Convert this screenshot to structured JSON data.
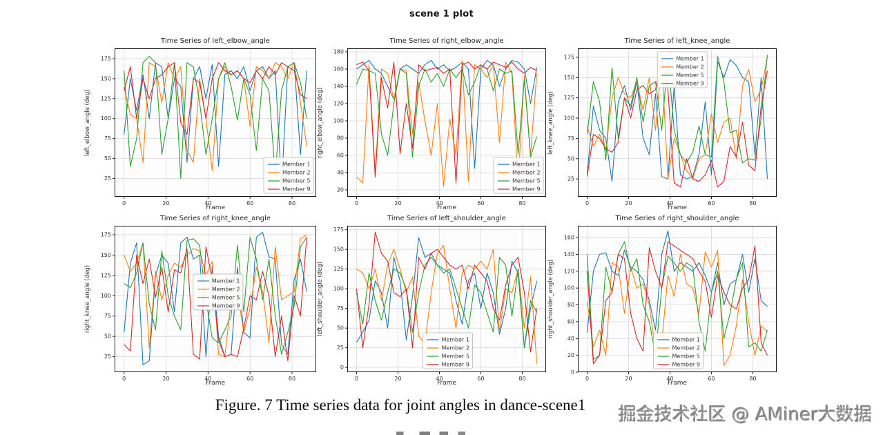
{
  "page": {
    "caption": "Figure. 7 Time series data for joint angles in dance-scene1",
    "watermark": "掘金技术社区 @ AMiner大数据"
  },
  "chart_data": {
    "type": "line",
    "title": "scene 1 plot",
    "shared": {
      "xlabel": "Frame",
      "xticks": [
        0,
        20,
        40,
        60,
        80
      ],
      "xlim": [
        -4.5,
        91.5
      ],
      "frames": [
        0,
        3,
        6,
        9,
        12,
        15,
        18,
        21,
        24,
        27,
        30,
        33,
        36,
        39,
        42,
        45,
        48,
        51,
        54,
        57,
        60,
        63,
        66,
        69,
        72,
        75,
        78,
        81,
        84,
        87
      ],
      "members": [
        "Member 1",
        "Member 2",
        "Member 5",
        "Member 9"
      ],
      "colors": [
        "#1f77b4",
        "#ff7f0e",
        "#2ca02c",
        "#d62728"
      ],
      "grid": true,
      "legend_border_color": "#b5b5b5"
    },
    "subplots": [
      {
        "title": "Time Series of left_elbow_angle",
        "ylabel": "left_elbow_angle (deg)",
        "yticks": [
          25,
          50,
          75,
          100,
          125,
          150,
          175
        ],
        "ylim": [
          2,
          188
        ],
        "legend_pos": "lower right",
        "series": [
          [
            80,
            150,
            110,
            155,
            100,
            170,
            165,
            100,
            150,
            140,
            45,
            150,
            165,
            125,
            168,
            40,
            155,
            160,
            150,
            165,
            135,
            160,
            165,
            150,
            160,
            15,
            165,
            170,
            55,
            160
          ],
          [
            140,
            105,
            100,
            45,
            170,
            165,
            120,
            170,
            150,
            165,
            60,
            45,
            150,
            100,
            35,
            150,
            165,
            155,
            160,
            150,
            90,
            165,
            160,
            150,
            170,
            165,
            150,
            170,
            120,
            65
          ],
          [
            160,
            40,
            75,
            170,
            178,
            170,
            55,
            100,
            170,
            25,
            170,
            165,
            120,
            55,
            100,
            150,
            170,
            140,
            98,
            150,
            130,
            60,
            150,
            135,
            28,
            135,
            165,
            170,
            145,
            100
          ],
          [
            135,
            165,
            100,
            150,
            125,
            150,
            155,
            165,
            170,
            95,
            80,
            150,
            145,
            100,
            150,
            170,
            160,
            155,
            160,
            150,
            145,
            160,
            150,
            165,
            155,
            170,
            165,
            160,
            130,
            125
          ]
        ]
      },
      {
        "title": "Time Series of right_elbow_angle",
        "ylabel": "right_elbow_angle (deg)",
        "yticks": [
          20,
          40,
          60,
          80,
          100,
          120,
          140,
          160,
          180
        ],
        "ylim": [
          12,
          184
        ],
        "legend_pos": "lower right",
        "series": [
          [
            160,
            165,
            170,
            160,
            155,
            140,
            125,
            160,
            165,
            160,
            155,
            165,
            170,
            160,
            165,
            158,
            162,
            168,
            160,
            45,
            160,
            170,
            165,
            140,
            160,
            170,
            168,
            160,
            120,
            162
          ],
          [
            35,
            28,
            165,
            40,
            160,
            155,
            125,
            160,
            158,
            85,
            145,
            100,
            60,
            120,
            24,
            102,
            60,
            170,
            30,
            165,
            160,
            150,
            165,
            75,
            168,
            155,
            30,
            152,
            60,
            155
          ],
          [
            142,
            160,
            158,
            155,
            85,
            60,
            120,
            160,
            155,
            58,
            140,
            160,
            145,
            155,
            140,
            160,
            150,
            160,
            130,
            145,
            165,
            160,
            135,
            160,
            155,
            158,
            62,
            148,
            58,
            82
          ],
          [
            165,
            168,
            158,
            35,
            150,
            115,
            168,
            62,
            120,
            68,
            165,
            158,
            160,
            162,
            155,
            160,
            28,
            165,
            168,
            160,
            165,
            160,
            168,
            165,
            162,
            168,
            160,
            155,
            162,
            158
          ]
        ]
      },
      {
        "title": "Time Series of left_knee_angle",
        "ylabel": "left_knee_angle (deg)",
        "yticks": [
          25,
          50,
          75,
          100,
          125,
          150,
          175
        ],
        "ylim": [
          3,
          186
        ],
        "legend_pos": "upper center",
        "series": [
          [
            30,
            115,
            85,
            75,
            22,
            120,
            140,
            110,
            145,
            75,
            55,
            130,
            28,
            25,
            140,
            30,
            25,
            28,
            55,
            120,
            30,
            170,
            150,
            172,
            165,
            150,
            145,
            55,
            150,
            25
          ],
          [
            90,
            65,
            80,
            60,
            125,
            150,
            130,
            125,
            145,
            110,
            150,
            85,
            170,
            25,
            75,
            55,
            35,
            25,
            50,
            55,
            105,
            70,
            95,
            100,
            50,
            140,
            160,
            120,
            135,
            175
          ],
          [
            80,
            145,
            120,
            48,
            162,
            75,
            125,
            115,
            150,
            95,
            140,
            145,
            85,
            175,
            85,
            55,
            45,
            58,
            90,
            55,
            52,
            176,
            145,
            82,
            85,
            45,
            50,
            48,
            100,
            178
          ],
          [
            28,
            80,
            75,
            62,
            58,
            70,
            125,
            100,
            135,
            140,
            130,
            135,
            173,
            135,
            20,
            15,
            50,
            25,
            22,
            30,
            48,
            15,
            22,
            65,
            52,
            95,
            42,
            35,
            115,
            158
          ]
        ]
      },
      {
        "title": "Time Series of right_knee_angle",
        "ylabel": "right_knee_angle (deg)",
        "yticks": [
          25,
          50,
          75,
          100,
          125,
          150,
          175
        ],
        "ylim": [
          6,
          186
        ],
        "legend_pos": "center",
        "series": [
          [
            55,
            140,
            165,
            15,
            20,
            125,
            150,
            140,
            80,
            165,
            172,
            145,
            150,
            25,
            135,
            50,
            25,
            28,
            135,
            55,
            48,
            172,
            178,
            148,
            145,
            40,
            28,
            120,
            145,
            105
          ],
          [
            150,
            130,
            140,
            165,
            35,
            130,
            95,
            125,
            140,
            135,
            150,
            158,
            155,
            125,
            142,
            28,
            25,
            95,
            105,
            55,
            85,
            135,
            105,
            42,
            160,
            95,
            100,
            105,
            170,
            175
          ],
          [
            115,
            110,
            128,
            165,
            90,
            58,
            155,
            100,
            75,
            58,
            168,
            170,
            162,
            95,
            48,
            42,
            58,
            75,
            162,
            80,
            172,
            145,
            95,
            145,
            75,
            28,
            55,
            88,
            160,
            172
          ],
          [
            40,
            32,
            150,
            115,
            145,
            98,
            135,
            80,
            132,
            128,
            158,
            28,
            22,
            160,
            120,
            45,
            25,
            28,
            25,
            60,
            100,
            95,
            130,
            100,
            25,
            75,
            20,
            100,
            75,
            172
          ]
        ]
      },
      {
        "title": "Time Series of left_shoulder_angle",
        "ylabel": "left_shoulder_angle (deg)",
        "yticks": [
          0,
          25,
          50,
          75,
          100,
          125,
          150,
          175
        ],
        "ylim": [
          -6,
          180
        ],
        "legend_pos": "lower center",
        "series": [
          [
            32,
            45,
            60,
            110,
            95,
            50,
            140,
            110,
            35,
            90,
            165,
            140,
            145,
            130,
            125,
            120,
            85,
            55,
            110,
            120,
            75,
            120,
            95,
            42,
            75,
            135,
            120,
            25,
            75,
            110
          ],
          [
            125,
            120,
            100,
            125,
            85,
            130,
            150,
            125,
            95,
            115,
            40,
            30,
            95,
            145,
            155,
            100,
            50,
            120,
            130,
            125,
            135,
            125,
            150,
            45,
            100,
            95,
            125,
            50,
            115,
            5
          ],
          [
            95,
            55,
            120,
            85,
            60,
            95,
            125,
            120,
            100,
            45,
            95,
            130,
            140,
            130,
            120,
            125,
            100,
            75,
            50,
            105,
            95,
            70,
            45,
            140,
            130,
            65,
            125,
            25,
            85,
            70
          ],
          [
            100,
            25,
            80,
            172,
            145,
            135,
            95,
            90,
            100,
            25,
            140,
            125,
            145,
            150,
            140,
            130,
            125,
            130,
            100,
            130,
            120,
            110,
            75,
            60,
            105,
            130,
            140,
            95,
            20,
            75
          ]
        ]
      },
      {
        "title": "Time Series of right_shoulder_angle",
        "ylabel": "right_shoulder_angle (deg)",
        "yticks": [
          0,
          20,
          40,
          60,
          80,
          100,
          120,
          140,
          160
        ],
        "ylim": [
          0,
          174
        ],
        "legend_pos": "lower center",
        "series": [
          [
            47,
            120,
            140,
            142,
            120,
            115,
            145,
            125,
            120,
            110,
            85,
            50,
            140,
            168,
            120,
            130,
            125,
            120,
            130,
            115,
            95,
            130,
            80,
            105,
            110,
            140,
            95,
            135,
            85,
            78
          ],
          [
            85,
            30,
            50,
            20,
            130,
            125,
            70,
            125,
            100,
            105,
            80,
            25,
            35,
            115,
            90,
            140,
            105,
            100,
            70,
            143,
            125,
            145,
            8,
            20,
            55,
            110,
            60,
            20,
            55,
            48
          ],
          [
            140,
            15,
            20,
            125,
            95,
            140,
            155,
            120,
            135,
            80,
            60,
            20,
            100,
            138,
            130,
            120,
            130,
            125,
            60,
            25,
            95,
            120,
            40,
            70,
            110,
            130,
            30,
            35,
            25,
            50
          ],
          [
            120,
            10,
            20,
            85,
            95,
            140,
            135,
            70,
            40,
            25,
            148,
            120,
            100,
            155,
            150,
            145,
            140,
            135,
            120,
            108,
            65,
            115,
            95,
            80,
            75,
            100,
            110,
            150,
            35,
            20
          ]
        ]
      }
    ]
  }
}
